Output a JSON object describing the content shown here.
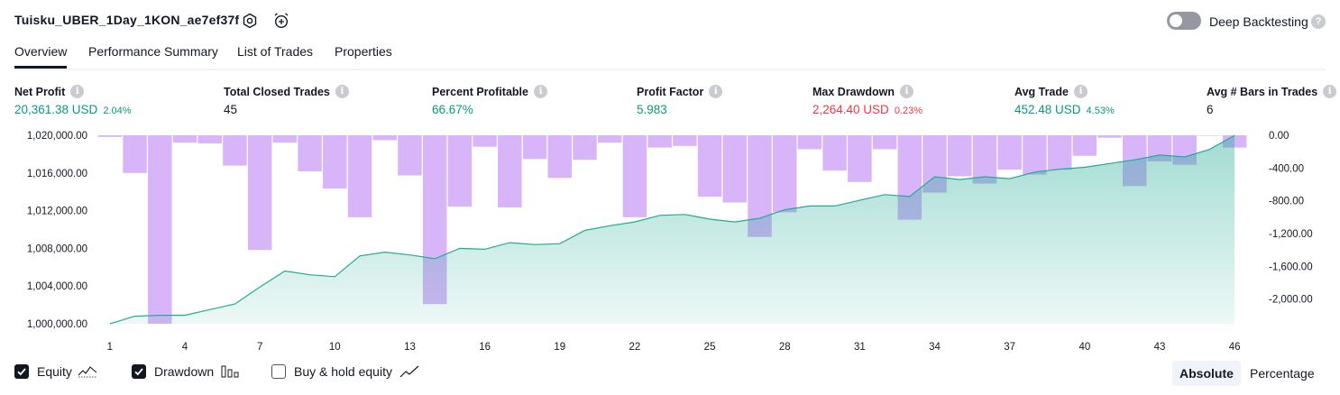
{
  "header": {
    "strategy_title": "Tuisku_UBER_1Day_1KON_ae7ef37f",
    "deep_backtesting_label": "Deep Backtesting",
    "deep_backtesting_on": false,
    "help_glyph": "?",
    "icons": [
      "settings-icon",
      "alarm-add-icon",
      "help-icon"
    ]
  },
  "tabs": [
    "Overview",
    "Performance Summary",
    "List of Trades",
    "Properties"
  ],
  "active_tab": "Overview",
  "metrics": [
    {
      "label": "Net Profit",
      "value": "20,361.38 USD",
      "pct": "2.04%",
      "color": "#089981"
    },
    {
      "label": "Total Closed Trades",
      "value": "45",
      "pct": "",
      "color": "#131722"
    },
    {
      "label": "Percent Profitable",
      "value": "66.67%",
      "pct": "",
      "color": "#089981"
    },
    {
      "label": "Profit Factor",
      "value": "5.983",
      "pct": "",
      "color": "#089981"
    },
    {
      "label": "Max Drawdown",
      "value": "2,264.40 USD",
      "pct": "0.23%",
      "color": "#f23645"
    },
    {
      "label": "Avg Trade",
      "value": "452.48 USD",
      "pct": "4.53%",
      "color": "#089981"
    },
    {
      "label": "Avg # Bars in Trades",
      "value": "6",
      "pct": "",
      "color": "#131722"
    }
  ],
  "chart_data": {
    "type": "line",
    "x": [
      1,
      2,
      3,
      4,
      5,
      6,
      7,
      8,
      9,
      10,
      11,
      12,
      13,
      14,
      15,
      16,
      17,
      18,
      19,
      20,
      21,
      22,
      23,
      24,
      25,
      26,
      27,
      28,
      29,
      30,
      31,
      32,
      33,
      34,
      35,
      36,
      37,
      38,
      39,
      40,
      41,
      42,
      43,
      44,
      45,
      46
    ],
    "x_ticks": [
      "1",
      "4",
      "7",
      "10",
      "13",
      "16",
      "19",
      "22",
      "25",
      "28",
      "31",
      "34",
      "37",
      "40",
      "43",
      "46"
    ],
    "equity": [
      1000000,
      1000800,
      1000900,
      1000900,
      1001500,
      1002100,
      1003900,
      1005600,
      1005200,
      1005000,
      1007200,
      1007600,
      1007300,
      1006900,
      1008000,
      1007900,
      1008600,
      1008400,
      1008500,
      1009900,
      1010400,
      1010800,
      1011500,
      1011600,
      1011100,
      1010800,
      1011200,
      1012100,
      1012500,
      1012500,
      1013100,
      1013700,
      1013500,
      1015600,
      1015300,
      1015600,
      1015400,
      1016100,
      1016400,
      1016600,
      1017000,
      1017400,
      1017900,
      1017700,
      1018500,
      1020000
    ],
    "drawdown": [
      -20,
      -460,
      -2300,
      -90,
      -100,
      -370,
      -1400,
      -90,
      -440,
      -650,
      -1000,
      -60,
      -490,
      -2060,
      -870,
      -140,
      -880,
      -290,
      -520,
      -300,
      -90,
      -1000,
      -150,
      -130,
      -750,
      -820,
      -1240,
      -940,
      -170,
      -430,
      -570,
      -170,
      -1030,
      -700,
      -500,
      -590,
      -420,
      -480,
      -420,
      -250,
      -30,
      -620,
      -320,
      -360,
      0,
      -150
    ],
    "equity_axis": {
      "min": 1000000,
      "max": 1020000,
      "ticks": [
        "1,020,000.00",
        "1,016,000.00",
        "1,012,000.00",
        "1,008,000.00",
        "1,004,000.00",
        "1,000,000.00"
      ]
    },
    "drawdown_axis": {
      "min": -2300,
      "max": 0,
      "ticks": [
        "0.00",
        "-400.00",
        "-800.00",
        "-1,200.00",
        "-1,600.00",
        "-2,000.00"
      ]
    },
    "equity_color": "#22ab94",
    "drawdown_color": "#d1a8f7"
  },
  "legend": {
    "equity": "Equity",
    "drawdown": "Drawdown",
    "buy_hold": "Buy & hold equity"
  },
  "view_toggle": {
    "absolute": "Absolute",
    "percentage": "Percentage",
    "active": "Absolute"
  }
}
